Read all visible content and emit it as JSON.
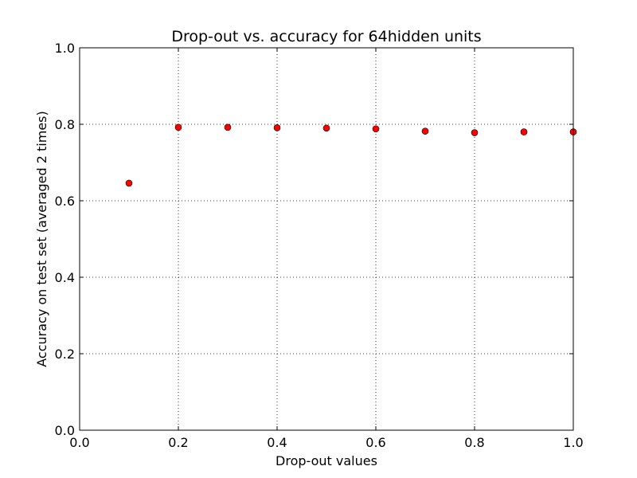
{
  "chart_data": {
    "type": "scatter",
    "title": "Drop-out vs. accuracy for 64hidden units",
    "xlabel": "Drop-out values",
    "ylabel": "Accuracy on test set (averaged 2 times)",
    "xlim": [
      0.0,
      1.0
    ],
    "ylim": [
      0.0,
      1.0
    ],
    "xticks": [
      "0.0",
      "0.2",
      "0.4",
      "0.6",
      "0.8",
      "1.0"
    ],
    "yticks": [
      "0.0",
      "0.2",
      "0.4",
      "0.6",
      "0.8",
      "1.0"
    ],
    "grid": true,
    "marker_color": "#ff0000",
    "points": [
      {
        "x": 0.1,
        "y": 0.646
      },
      {
        "x": 0.2,
        "y": 0.792
      },
      {
        "x": 0.3,
        "y": 0.792
      },
      {
        "x": 0.4,
        "y": 0.791
      },
      {
        "x": 0.5,
        "y": 0.79
      },
      {
        "x": 0.6,
        "y": 0.788
      },
      {
        "x": 0.7,
        "y": 0.782
      },
      {
        "x": 0.8,
        "y": 0.778
      },
      {
        "x": 0.9,
        "y": 0.78
      },
      {
        "x": 1.0,
        "y": 0.78
      }
    ]
  }
}
